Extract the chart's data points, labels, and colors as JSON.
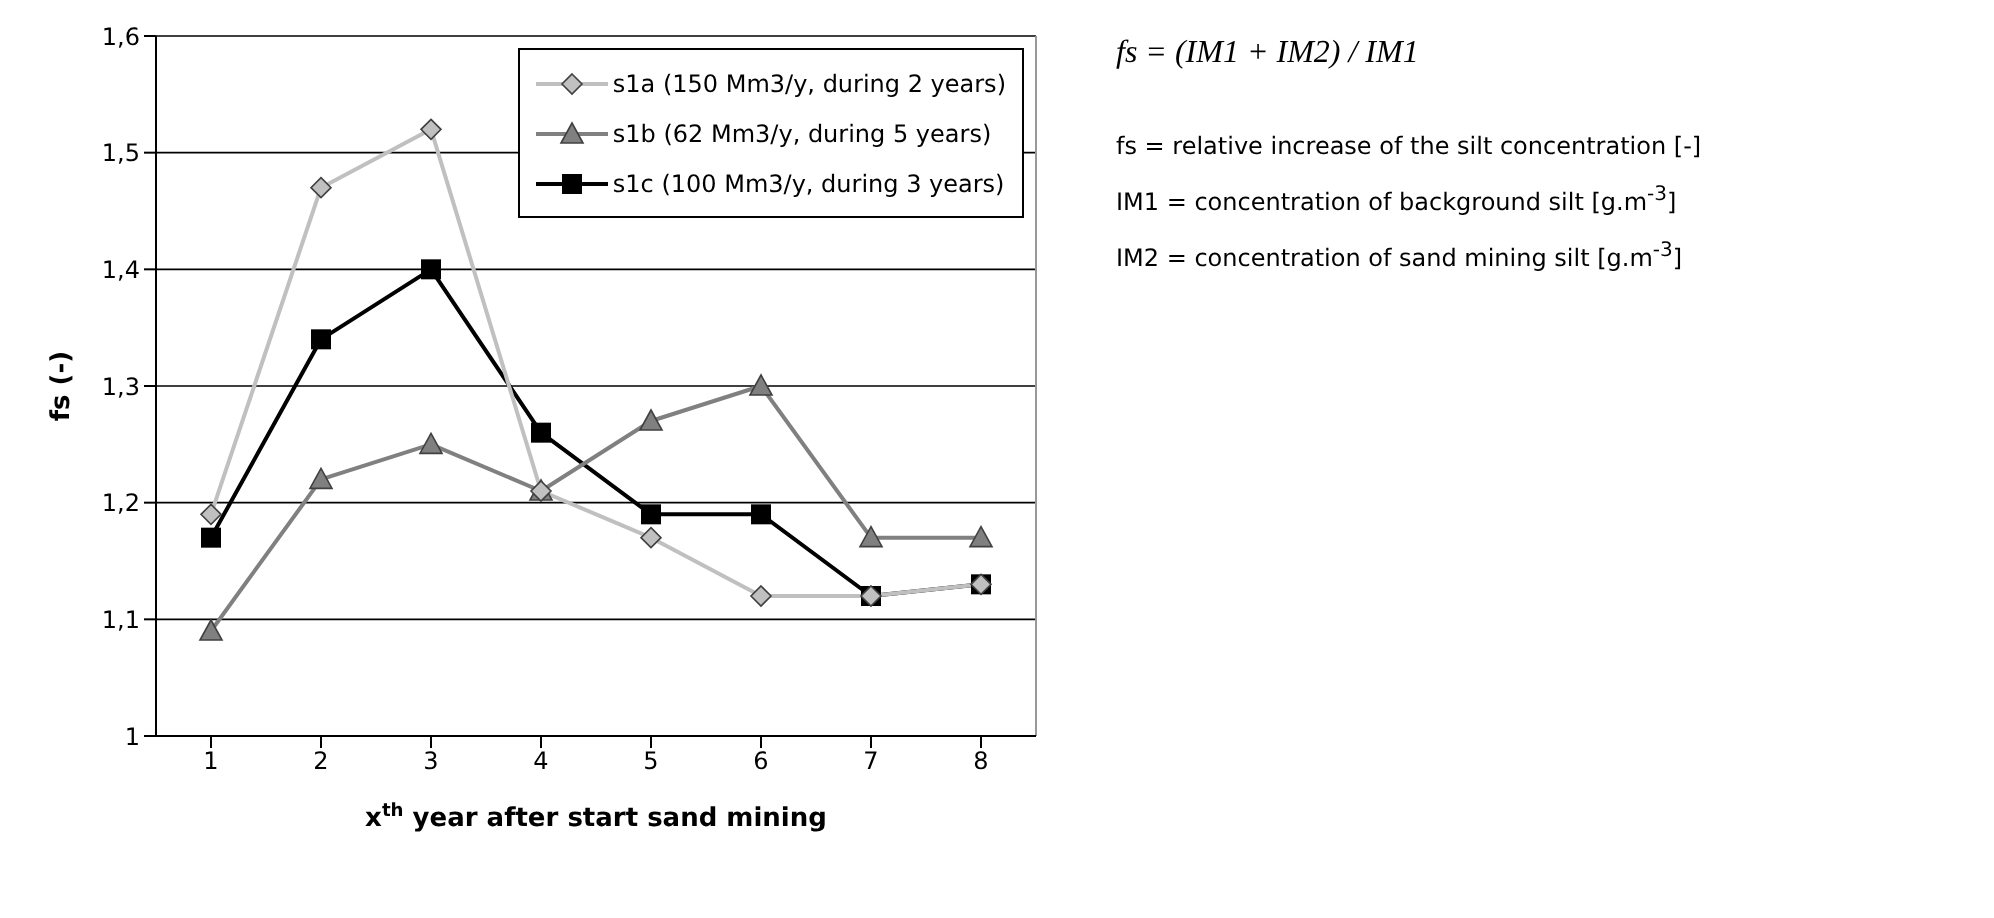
{
  "chart_data": {
    "type": "line",
    "xlabel": "x$^{th}$ year after start sand mining",
    "ylabel": "fs (-)",
    "categories": [
      "1",
      "2",
      "3",
      "4",
      "5",
      "6",
      "7",
      "8"
    ],
    "series": [
      {
        "name": "s1a (150 Mm3/y, during 2 years)",
        "color": "#c0c0c0",
        "marker": "diamond",
        "values": [
          1.19,
          1.47,
          1.52,
          1.21,
          1.17,
          1.12,
          1.12,
          1.13
        ]
      },
      {
        "name": "s1b (62 Mm3/y, during 5 years)",
        "color": "#808080",
        "marker": "triangle",
        "values": [
          1.09,
          1.22,
          1.25,
          1.21,
          1.27,
          1.3,
          1.17,
          1.17
        ]
      },
      {
        "name": "s1c (100 Mm3/y, during 3 years)",
        "color": "#000000",
        "marker": "square",
        "values": [
          1.17,
          1.34,
          1.4,
          1.26,
          1.19,
          1.19,
          1.12,
          1.13
        ]
      }
    ],
    "ylim": [
      1,
      1.6
    ],
    "yticks": [
      {
        "value": 1,
        "label": "1"
      },
      {
        "value": 1.1,
        "label": "1,1"
      },
      {
        "value": 1.2,
        "label": "1,2"
      },
      {
        "value": 1.3,
        "label": "1,3"
      },
      {
        "value": 1.4,
        "label": "1,4"
      },
      {
        "value": 1.5,
        "label": "1,5"
      },
      {
        "value": 1.6,
        "label": "1,6"
      }
    ],
    "grid": "y",
    "legend": "top right",
    "line_style": "solid",
    "annotations": [
      "fs = (IM1 + IM2) / IM1",
      "fs = relative increase of the silt concentration [-]",
      "IM1 = concentration of background silt [g.m$^{-3}$]",
      "IM2 = concentration of sand mining silt [g.m$^{-3}$]"
    ]
  }
}
